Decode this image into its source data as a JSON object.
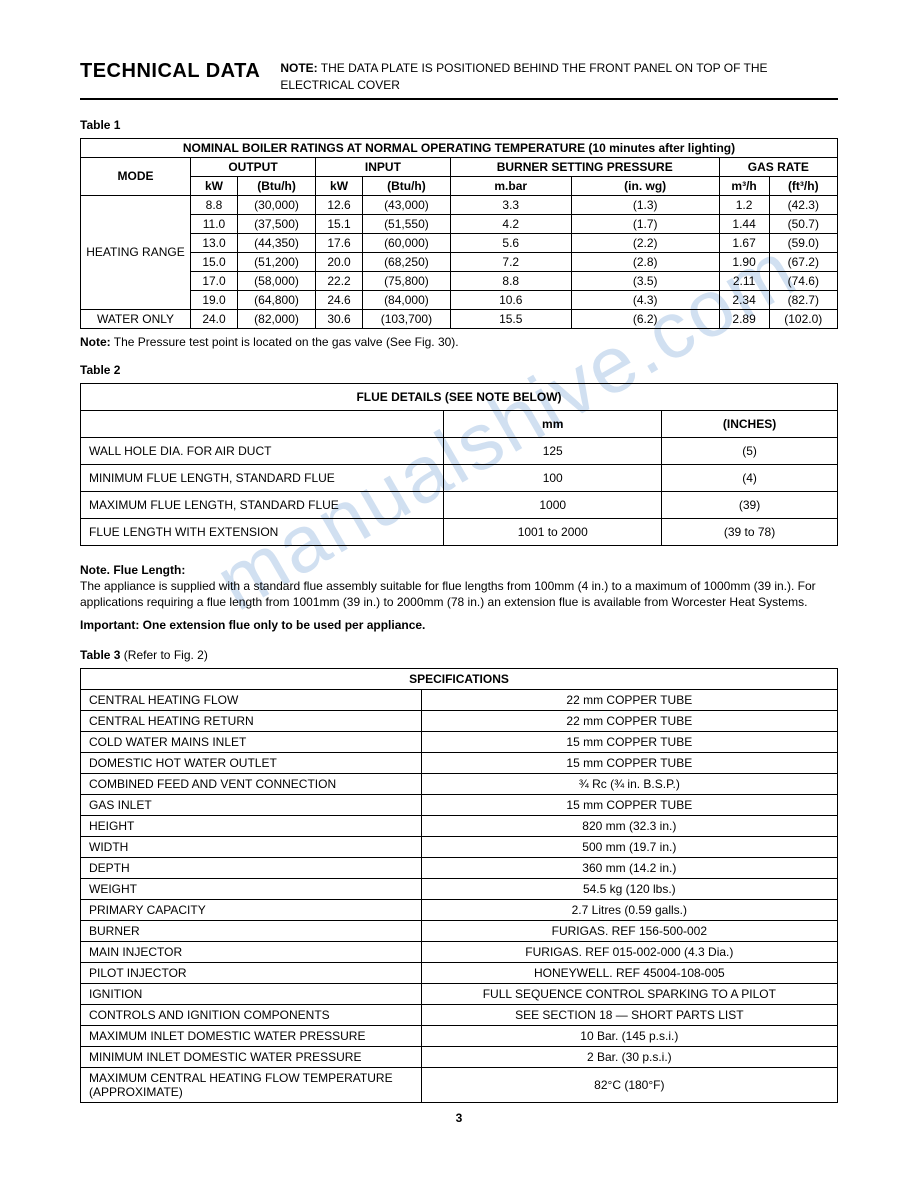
{
  "header": {
    "title": "TECHNICAL DATA",
    "note_prefix": "NOTE:",
    "note_text": " THE DATA PLATE IS POSITIONED BEHIND THE FRONT PANEL ON TOP OF THE ELECTRICAL COVER"
  },
  "watermark": "manualshive.com",
  "table1": {
    "label": "Table 1",
    "title": "NOMINAL BOILER RATINGS AT NORMAL OPERATING TEMPERATURE (10 minutes after lighting)",
    "cols": {
      "mode": "MODE",
      "output": "OUTPUT",
      "input": "INPUT",
      "burner": "BURNER SETTING PRESSURE",
      "gas": "GAS RATE",
      "kw": "kW",
      "btuh": "(Btu/h)",
      "mbar": "m.bar",
      "inwg": "(in. wg)",
      "m3h": "m³/h",
      "ft3h": "(ft³/h)"
    },
    "heating_range_label": "HEATING RANGE",
    "water_only_label": "WATER ONLY",
    "rows": [
      [
        "8.8",
        "(30,000)",
        "12.6",
        "(43,000)",
        "3.3",
        "(1.3)",
        "1.2",
        "(42.3)"
      ],
      [
        "11.0",
        "(37,500)",
        "15.1",
        "(51,550)",
        "4.2",
        "(1.7)",
        "1.44",
        "(50.7)"
      ],
      [
        "13.0",
        "(44,350)",
        "17.6",
        "(60,000)",
        "5.6",
        "(2.2)",
        "1.67",
        "(59.0)"
      ],
      [
        "15.0",
        "(51,200)",
        "20.0",
        "(68,250)",
        "7.2",
        "(2.8)",
        "1.90",
        "(67.2)"
      ],
      [
        "17.0",
        "(58,000)",
        "22.2",
        "(75,800)",
        "8.8",
        "(3.5)",
        "2.11",
        "(74.6)"
      ],
      [
        "19.0",
        "(64,800)",
        "24.6",
        "(84,000)",
        "10.6",
        "(4.3)",
        "2.34",
        "(82.7)"
      ]
    ],
    "water_only_row": [
      "24.0",
      "(82,000)",
      "30.6",
      "(103,700)",
      "15.5",
      "(6.2)",
      "2.89",
      "(102.0)"
    ],
    "note_prefix": "Note:",
    "note_text": " The Pressure test point is located on the gas valve (See Fig. 30)."
  },
  "table2": {
    "label": "Table 2",
    "title": "FLUE DETAILS (SEE NOTE BELOW)",
    "col_mm": "mm",
    "col_in": "(INCHES)",
    "rows": [
      {
        "lbl": "WALL HOLE DIA. FOR AIR DUCT",
        "mm": "125",
        "in": "(5)"
      },
      {
        "lbl": "MINIMUM FLUE LENGTH, STANDARD FLUE",
        "mm": "100",
        "in": "(4)"
      },
      {
        "lbl": "MAXIMUM FLUE LENGTH, STANDARD FLUE",
        "mm": "1000",
        "in": "(39)"
      },
      {
        "lbl": "FLUE LENGTH WITH EXTENSION",
        "mm": "1001 to 2000",
        "in": "(39 to 78)"
      }
    ]
  },
  "flue_note": {
    "heading": "Note. Flue Length:",
    "body": "The appliance is supplied with a standard flue assembly suitable for flue lengths from 100mm (4 in.) to a maximum of 1000mm (39 in.). For applications requiring a flue length from 1001mm (39 in.) to 2000mm (78 in.) an extension flue is available from Worcester Heat Systems.",
    "important": "Important: One extension flue only to be used per appliance."
  },
  "table3": {
    "label_bold": "Table 3",
    "label_rest": " (Refer to Fig. 2)",
    "title": "SPECIFICATIONS",
    "rows": [
      {
        "lbl": "CENTRAL HEATING FLOW",
        "val": "22 mm COPPER TUBE"
      },
      {
        "lbl": "CENTRAL HEATING RETURN",
        "val": "22 mm COPPER TUBE"
      },
      {
        "lbl": "COLD WATER MAINS INLET",
        "val": "15 mm COPPER TUBE"
      },
      {
        "lbl": "DOMESTIC HOT WATER OUTLET",
        "val": "15 mm COPPER TUBE"
      },
      {
        "lbl": "COMBINED FEED AND VENT CONNECTION",
        "val": "¾ Rc (¾ in. B.S.P.)"
      },
      {
        "lbl": "GAS INLET",
        "val": "15 mm COPPER TUBE"
      },
      {
        "lbl": "HEIGHT",
        "val": "820 mm (32.3 in.)"
      },
      {
        "lbl": "WIDTH",
        "val": "500 mm (19.7 in.)"
      },
      {
        "lbl": "DEPTH",
        "val": "360 mm (14.2 in.)"
      },
      {
        "lbl": "WEIGHT",
        "val": "54.5 kg (120 lbs.)"
      },
      {
        "lbl": "PRIMARY CAPACITY",
        "val": "2.7 Litres (0.59 galls.)"
      },
      {
        "lbl": "BURNER",
        "val": "FURIGAS. REF 156-500-002"
      },
      {
        "lbl": "MAIN INJECTOR",
        "val": "FURIGAS. REF 015-002-000 (4.3 Dia.)"
      },
      {
        "lbl": "PILOT INJECTOR",
        "val": "HONEYWELL. REF 45004-108-005"
      },
      {
        "lbl": "IGNITION",
        "val": "FULL SEQUENCE CONTROL SPARKING TO A PILOT"
      },
      {
        "lbl": "CONTROLS AND IGNITION COMPONENTS",
        "val": "SEE SECTION 18 — SHORT PARTS LIST"
      },
      {
        "lbl": "MAXIMUM INLET DOMESTIC WATER PRESSURE",
        "val": "10 Bar. (145 p.s.i.)"
      },
      {
        "lbl": "MINIMUM INLET DOMESTIC WATER PRESSURE",
        "val": "2 Bar. (30 p.s.i.)"
      },
      {
        "lbl": "MAXIMUM CENTRAL HEATING FLOW TEMPERATURE (APPROXIMATE)",
        "val": "82°C (180°F)"
      }
    ]
  },
  "page_number": "3"
}
